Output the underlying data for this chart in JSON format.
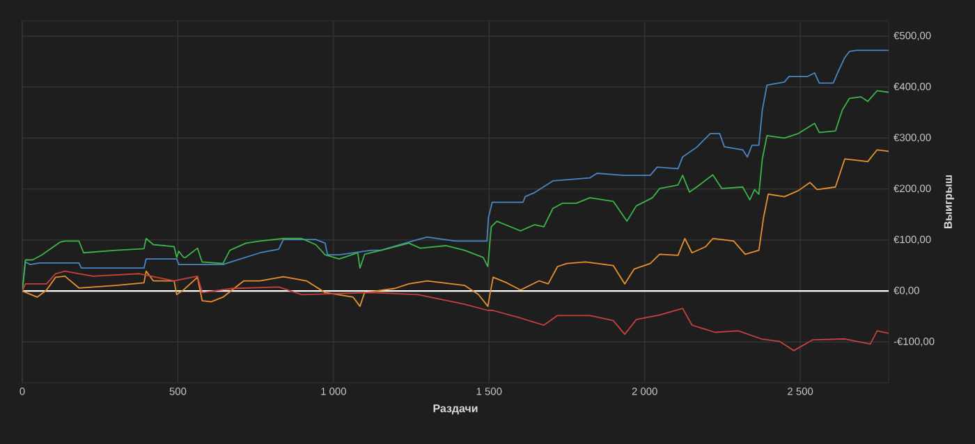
{
  "chart_data": {
    "type": "line",
    "xlabel": "Раздачи",
    "ylabel": "Выигрыш",
    "xlim": [
      0,
      2784
    ],
    "ylim": [
      -180,
      530
    ],
    "xticks": [
      0,
      500,
      {
        "value": 1000,
        "label": "1 000"
      },
      {
        "value": 1500,
        "label": "1 500"
      },
      {
        "value": 2000,
        "label": "2 000"
      },
      {
        "value": 2500,
        "label": "2 500"
      }
    ],
    "yticks": [
      {
        "value": -100,
        "label": "-€100,00"
      },
      {
        "value": 0,
        "label": "€0,00"
      },
      {
        "value": 100,
        "label": "€100,00"
      },
      {
        "value": 200,
        "label": "€200,00"
      },
      {
        "value": 300,
        "label": "€300,00"
      },
      {
        "value": 400,
        "label": "€400,00"
      },
      {
        "value": 500,
        "label": "€500,00"
      }
    ],
    "grid": true,
    "ref_lines": [
      {
        "axis": "y",
        "value": 0,
        "color": "#ffffff"
      }
    ],
    "series": [
      {
        "color": "#4a86c5",
        "x": [
          0,
          10,
          25,
          55,
          182,
          190,
          391,
          398,
          496,
          503,
          645,
          660,
          764,
          824,
          839,
          943,
          973,
          981,
          1018,
          1122,
          1152,
          1242,
          1301,
          1391,
          1493,
          1498,
          1510,
          1609,
          1616,
          1646,
          1705,
          1824,
          1847,
          1929,
          2018,
          2040,
          2107,
          2122,
          2167,
          2211,
          2241,
          2256,
          2315,
          2330,
          2345,
          2367,
          2378,
          2393,
          2449,
          2464,
          2524,
          2546,
          2561,
          2606,
          2620,
          2643,
          2658,
          2680,
          2784
        ],
        "values": [
          0,
          57,
          52,
          55,
          55,
          45,
          45,
          63,
          63,
          52,
          52,
          55,
          75,
          82,
          101,
          101,
          94,
          71,
          71,
          80,
          80,
          96,
          106,
          98,
          98,
          144,
          174,
          174,
          185,
          193,
          216,
          222,
          231,
          227,
          227,
          243,
          240,
          263,
          282,
          309,
          309,
          283,
          277,
          263,
          286,
          286,
          355,
          404,
          410,
          421,
          421,
          428,
          408,
          408,
          428,
          458,
          470,
          472,
          472
        ]
      },
      {
        "color": "#3cb44a",
        "x": [
          0,
          10,
          33,
          63,
          122,
          137,
          182,
          197,
          301,
          391,
          398,
          421,
          488,
          496,
          503,
          518,
          525,
          563,
          578,
          645,
          667,
          719,
          764,
          839,
          898,
          943,
          973,
          1018,
          1078,
          1085,
          1100,
          1167,
          1242,
          1279,
          1361,
          1421,
          1481,
          1496,
          1507,
          1525,
          1601,
          1646,
          1676,
          1705,
          1735,
          1780,
          1824,
          1899,
          1943,
          1973,
          2025,
          2048,
          2107,
          2122,
          2144,
          2167,
          2219,
          2248,
          2315,
          2338,
          2353,
          2367,
          2378,
          2393,
          2449,
          2494,
          2546,
          2561,
          2613,
          2635,
          2658,
          2695,
          2717,
          2747,
          2784
        ],
        "values": [
          0,
          61,
          61,
          71,
          96,
          98,
          98,
          75,
          80,
          83,
          103,
          91,
          87,
          66,
          78,
          66,
          66,
          84,
          57,
          54,
          80,
          94,
          98,
          103,
          103,
          91,
          71,
          63,
          75,
          45,
          72,
          82,
          94,
          84,
          89,
          80,
          66,
          48,
          126,
          137,
          118,
          130,
          126,
          162,
          172,
          172,
          183,
          176,
          137,
          167,
          183,
          201,
          208,
          227,
          194,
          204,
          228,
          201,
          204,
          179,
          199,
          190,
          259,
          305,
          300,
          309,
          329,
          311,
          314,
          355,
          378,
          381,
          372,
          393,
          390
        ]
      },
      {
        "color": "#e8912e",
        "x": [
          0,
          48,
          78,
          107,
          137,
          182,
          301,
          391,
          398,
          421,
          488,
          496,
          518,
          563,
          578,
          607,
          645,
          712,
          764,
          839,
          913,
          973,
          1063,
          1085,
          1100,
          1197,
          1242,
          1301,
          1421,
          1466,
          1496,
          1513,
          1557,
          1601,
          1661,
          1690,
          1720,
          1750,
          1810,
          1899,
          1936,
          1966,
          2018,
          2048,
          2107,
          2129,
          2152,
          2196,
          2219,
          2286,
          2323,
          2367,
          2382,
          2397,
          2449,
          2494,
          2531,
          2554,
          2613,
          2643,
          2717,
          2747,
          2784
        ],
        "values": [
          0,
          -12,
          2,
          27,
          29,
          6,
          11,
          16,
          39,
          20,
          20,
          -7,
          2,
          27,
          -19,
          -21,
          -12,
          20,
          20,
          28,
          20,
          -3,
          -12,
          -30,
          -3,
          5,
          14,
          20,
          11,
          -7,
          -30,
          27,
          16,
          2,
          20,
          14,
          48,
          54,
          57,
          50,
          14,
          43,
          54,
          72,
          70,
          103,
          75,
          87,
          103,
          98,
          72,
          80,
          144,
          190,
          185,
          197,
          213,
          199,
          204,
          259,
          254,
          277,
          274
        ]
      },
      {
        "color": "#c8403e",
        "x": [
          0,
          10,
          78,
          107,
          137,
          227,
          376,
          488,
          563,
          578,
          675,
          824,
          898,
          1122,
          1272,
          1421,
          1496,
          1512,
          1601,
          1676,
          1720,
          1824,
          1899,
          1936,
          1973,
          2048,
          2122,
          2152,
          2226,
          2301,
          2375,
          2434,
          2479,
          2539,
          2643,
          2725,
          2747,
          2784
        ],
        "values": [
          0,
          14,
          14,
          34,
          39,
          29,
          34,
          20,
          29,
          -3,
          5,
          8,
          -7,
          -3,
          -7,
          -26,
          -38,
          -38,
          -53,
          -67,
          -48,
          -48,
          -58,
          -85,
          -56,
          -47,
          -34,
          -67,
          -81,
          -78,
          -94,
          -99,
          -117,
          -96,
          -94,
          -104,
          -78,
          -83
        ]
      }
    ]
  }
}
